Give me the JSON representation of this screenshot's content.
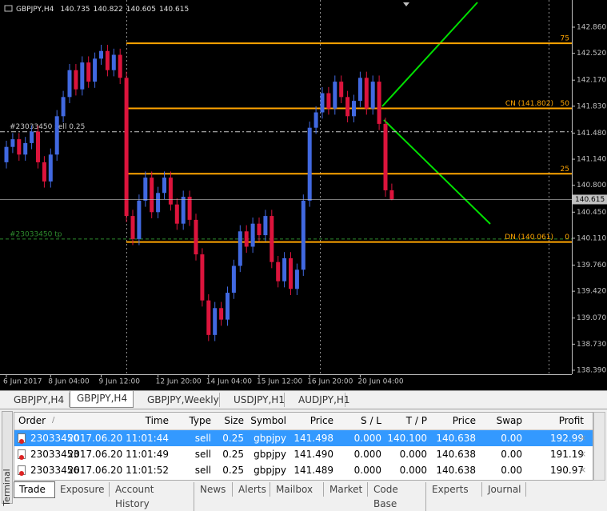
{
  "chart": {
    "type": "candlestick",
    "symbol": "GBPJPY,H4",
    "up_color": "#4169e1",
    "down_color": "#dc143c",
    "ylim": [
      138.338,
      143.214
    ],
    "yticks": [
      {
        "value": 142.86,
        "label": "142.860"
      },
      {
        "value": 142.52,
        "label": "142.520"
      },
      {
        "value": 142.17,
        "label": "142.170"
      },
      {
        "value": 141.83,
        "label": "141.830"
      },
      {
        "value": 141.48,
        "label": "141.480"
      },
      {
        "value": 141.14,
        "label": "141.140"
      },
      {
        "value": 140.8,
        "label": "140.800"
      },
      {
        "value": 140.45,
        "label": "140.450"
      },
      {
        "value": 140.11,
        "label": "140.110"
      },
      {
        "value": 139.76,
        "label": "139.760"
      },
      {
        "value": 139.42,
        "label": "139.420"
      },
      {
        "value": 139.07,
        "label": "139.070"
      },
      {
        "value": 138.73,
        "label": "138.730"
      },
      {
        "value": 138.39,
        "label": "138.390"
      }
    ],
    "times": [
      "6 Jun 2017",
      null,
      null,
      null,
      null,
      null,
      null,
      "8 Jun 04:00",
      null,
      null,
      null,
      null,
      null,
      null,
      null,
      "9 Jun 12:00",
      null,
      null,
      null,
      null,
      null,
      null,
      null,
      null,
      "12 Jun 20:00",
      null,
      null,
      null,
      null,
      null,
      null,
      null,
      "14 Jun 04:00",
      null,
      null,
      null,
      null,
      null,
      null,
      null,
      "15 Jun 12:00",
      null,
      null,
      null,
      null,
      null,
      null,
      null,
      "16 Jun 20:00",
      null,
      null,
      null,
      null,
      null,
      null,
      null,
      "20 Jun 04:00",
      null,
      null,
      null,
      null,
      null
    ],
    "candles": [
      [
        141.1,
        141.38,
        141.02,
        141.3
      ],
      [
        141.3,
        141.48,
        141.22,
        141.4
      ],
      [
        141.4,
        141.48,
        141.12,
        141.2
      ],
      [
        141.2,
        141.43,
        141.12,
        141.35
      ],
      [
        141.35,
        141.58,
        141.27,
        141.5
      ],
      [
        141.5,
        141.58,
        141.02,
        141.1
      ],
      [
        141.1,
        141.18,
        140.77,
        140.85
      ],
      [
        140.85,
        141.28,
        140.77,
        141.2
      ],
      [
        141.2,
        141.78,
        141.12,
        141.7
      ],
      [
        141.7,
        142.03,
        141.62,
        141.95
      ],
      [
        141.95,
        142.38,
        141.87,
        142.3
      ],
      [
        142.3,
        142.38,
        141.97,
        142.05
      ],
      [
        142.05,
        142.48,
        141.97,
        142.4
      ],
      [
        142.4,
        142.48,
        142.07,
        142.15
      ],
      [
        142.15,
        142.53,
        142.07,
        142.45
      ],
      [
        142.45,
        142.63,
        142.37,
        142.55
      ],
      [
        142.55,
        142.63,
        142.22,
        142.3
      ],
      [
        142.3,
        142.58,
        142.22,
        142.5
      ],
      [
        142.5,
        142.58,
        142.12,
        142.2
      ],
      [
        142.2,
        142.28,
        140.32,
        140.4
      ],
      [
        140.4,
        140.48,
        140.02,
        140.1
      ],
      [
        140.1,
        140.68,
        140.02,
        140.6
      ],
      [
        140.6,
        140.98,
        140.52,
        140.9
      ],
      [
        140.9,
        140.98,
        140.37,
        140.45
      ],
      [
        140.45,
        140.78,
        140.37,
        140.7
      ],
      [
        140.7,
        140.98,
        140.62,
        140.9
      ],
      [
        140.9,
        140.98,
        140.47,
        140.55
      ],
      [
        140.55,
        140.63,
        140.22,
        140.3
      ],
      [
        140.3,
        140.73,
        140.22,
        140.65
      ],
      [
        140.65,
        140.73,
        140.27,
        140.35
      ],
      [
        140.35,
        140.43,
        139.82,
        139.9
      ],
      [
        139.9,
        139.98,
        139.22,
        139.3
      ],
      [
        139.3,
        139.38,
        138.77,
        138.85
      ],
      [
        138.85,
        139.28,
        138.77,
        139.2
      ],
      [
        139.2,
        139.28,
        138.97,
        139.05
      ],
      [
        139.05,
        139.48,
        138.97,
        139.4
      ],
      [
        139.4,
        139.83,
        139.32,
        139.75
      ],
      [
        139.75,
        140.28,
        139.67,
        140.2
      ],
      [
        140.2,
        140.28,
        139.92,
        140.0
      ],
      [
        140.0,
        140.38,
        139.92,
        140.3
      ],
      [
        140.3,
        140.38,
        140.07,
        140.15
      ],
      [
        140.15,
        140.48,
        140.07,
        140.4
      ],
      [
        140.4,
        140.48,
        139.72,
        139.8
      ],
      [
        139.8,
        139.88,
        139.47,
        139.55
      ],
      [
        139.55,
        139.93,
        139.47,
        139.85
      ],
      [
        139.85,
        139.93,
        139.37,
        139.45
      ],
      [
        139.45,
        139.78,
        139.37,
        139.7
      ],
      [
        139.7,
        140.68,
        139.62,
        140.6
      ],
      [
        140.6,
        141.63,
        140.52,
        141.55
      ],
      [
        141.55,
        141.83,
        141.47,
        141.75
      ],
      [
        141.75,
        142.08,
        141.67,
        142.0
      ],
      [
        142.0,
        142.08,
        141.72,
        141.8
      ],
      [
        141.8,
        142.23,
        141.72,
        142.15
      ],
      [
        142.15,
        142.23,
        141.87,
        141.95
      ],
      [
        141.95,
        142.03,
        141.62,
        141.7
      ],
      [
        141.7,
        141.98,
        141.62,
        141.9
      ],
      [
        141.9,
        142.28,
        141.82,
        142.2
      ],
      [
        142.2,
        142.28,
        141.72,
        141.8
      ],
      [
        141.8,
        142.23,
        141.72,
        142.15
      ],
      [
        142.15,
        142.23,
        141.52,
        141.6
      ],
      [
        141.6,
        141.68,
        140.65,
        140.735
      ],
      [
        140.735,
        140.822,
        140.605,
        140.615
      ]
    ],
    "fib_levels": [
      {
        "label": "75",
        "price": 142.65
      },
      {
        "note": "CN  (141.802)",
        "label": "50",
        "price": 141.802
      },
      {
        "label": "25",
        "price": 140.95
      },
      {
        "note": "DN  (140.061)",
        "label": "0",
        "price": 140.061
      }
    ],
    "order_lines": [
      {
        "label": "#23033450 sell 0.25",
        "price": 141.498,
        "color": "#c8c8c8"
      },
      {
        "label": "#23033450 tp",
        "price": 140.1,
        "color": "#2e8b2e"
      }
    ]
  },
  "chart_tabs": [
    "GBPJPY,H4",
    "GBPJPY,H4",
    "GBPJPY,Weekly",
    "USDJPY,H1",
    "AUDJPY,H1"
  ],
  "terminal": {
    "title": "Terminal",
    "columns": [
      "Order",
      "/",
      "Time",
      "Type",
      "Size",
      "Symbol",
      "Price",
      "S / L",
      "T / P",
      "Price",
      "Swap",
      "Profit"
    ],
    "rows": [
      [
        "23033450",
        "2017.06.20 11:01:44",
        "sell",
        "0.25",
        "gbpjpy",
        "141.498",
        "0.000",
        "140.100",
        "140.638",
        "0.00",
        "192.99"
      ],
      [
        "23033453",
        "2017.06.20 11:01:49",
        "sell",
        "0.25",
        "gbpjpy",
        "141.490",
        "0.000",
        "0.000",
        "140.638",
        "0.00",
        "191.19"
      ],
      [
        "23033456",
        "2017.06.20 11:01:52",
        "sell",
        "0.25",
        "gbpjpy",
        "141.489",
        "0.000",
        "0.000",
        "140.638",
        "0.00",
        "190.97"
      ]
    ],
    "tabs": [
      "Trade",
      "Exposure",
      "Account History",
      "News",
      "Alerts",
      "Mailbox",
      "Market",
      "Code Base",
      "Experts",
      "Journal"
    ]
  }
}
